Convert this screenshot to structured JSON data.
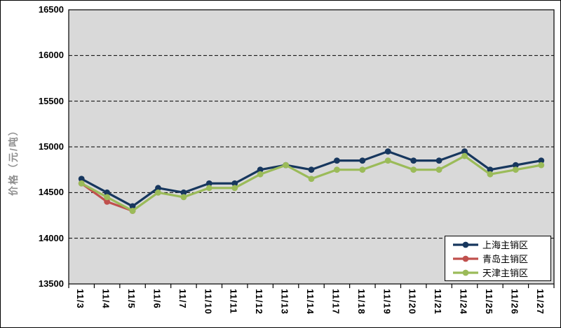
{
  "chart_data": {
    "type": "line",
    "title": "",
    "xlabel": "",
    "ylabel": "价格（元/吨）",
    "ylim": [
      13500,
      16500
    ],
    "ytick_step": 500,
    "grid": "horizontal-dashed",
    "legend_position": "bottom-right-inside",
    "categories": [
      "11/3",
      "11/4",
      "11/5",
      "11/6",
      "11/7",
      "11/10",
      "11/11",
      "11/12",
      "11/13",
      "11/14",
      "11/17",
      "11/18",
      "11/19",
      "11/20",
      "11/21",
      "11/24",
      "11/25",
      "11/26",
      "11/27"
    ],
    "series": [
      {
        "name": "上海主销区",
        "color": "#17375E",
        "values": [
          14650,
          14500,
          14350,
          14550,
          14500,
          14600,
          14600,
          14750,
          14800,
          14750,
          14850,
          14850,
          14950,
          14850,
          14850,
          14950,
          14750,
          14800,
          14850
        ]
      },
      {
        "name": "青岛主销区",
        "color": "#C0504D",
        "values": [
          14600,
          14400,
          14300,
          null,
          null,
          null,
          null,
          null,
          null,
          null,
          null,
          null,
          null,
          null,
          null,
          null,
          null,
          null,
          null
        ]
      },
      {
        "name": "天津主销区",
        "color": "#9BBB59",
        "values": [
          14600,
          14450,
          14300,
          14500,
          14450,
          14550,
          14550,
          14700,
          14800,
          14650,
          14750,
          14750,
          14850,
          14750,
          14750,
          14900,
          14700,
          14750,
          14800
        ]
      }
    ]
  },
  "colors": {
    "plot_bg": "#D9D9D9",
    "chart_bg": "#FFFFFF",
    "axis": "#000000",
    "gridline": "#000000",
    "ylabel_color": "#8F8F8F"
  }
}
